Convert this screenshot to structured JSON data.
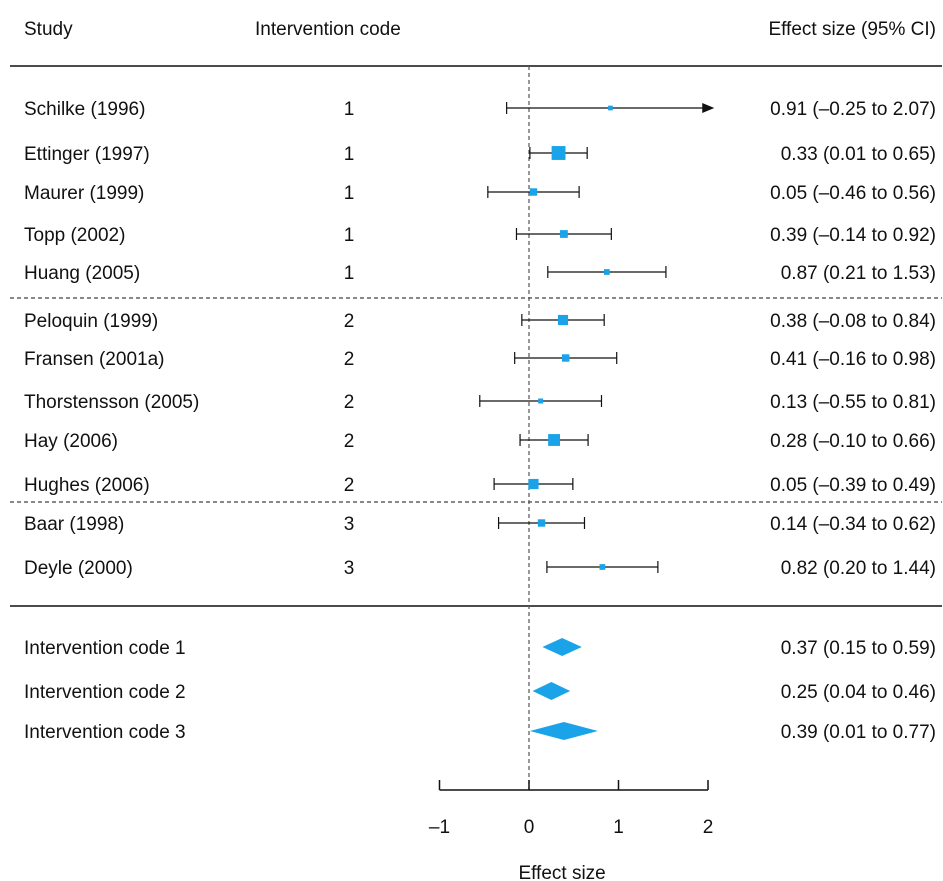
{
  "chart_data": {
    "type": "forest",
    "headers": {
      "study": "Study",
      "code": "Intervention code",
      "effect": "Effect size (95% CI)"
    },
    "xlabel": "Effect size",
    "x_ticks": [
      "–1",
      "0",
      "1",
      "2"
    ],
    "x_tick_values": [
      -1,
      0,
      1,
      2
    ],
    "xlim": [
      -1,
      2
    ],
    "reference_line": 0,
    "marker_color": "#1aa3e8",
    "studies": [
      {
        "name": "Schilke (1996)",
        "code": "1",
        "est": 0.91,
        "lo": -0.25,
        "hi": 2.07,
        "label": "0.91 (–0.25 to 2.07)",
        "weight": 0.5,
        "arrow": "right"
      },
      {
        "name": "Ettinger (1997)",
        "code": "1",
        "est": 0.33,
        "lo": 0.01,
        "hi": 0.65,
        "label": "0.33 (0.01 to 0.65)",
        "weight": 3.2
      },
      {
        "name": "Maurer (1999)",
        "code": "1",
        "est": 0.05,
        "lo": -0.46,
        "hi": 0.56,
        "label": "0.05 (–0.46 to 0.56)",
        "weight": 1.3
      },
      {
        "name": "Topp (2002)",
        "code": "1",
        "est": 0.39,
        "lo": -0.14,
        "hi": 0.92,
        "label": "0.39 (–0.14 to 0.92)",
        "weight": 1.4
      },
      {
        "name": "Huang (2005)",
        "code": "1",
        "est": 0.87,
        "lo": 0.21,
        "hi": 1.53,
        "label": "0.87 (0.21 to 1.53)",
        "weight": 0.8
      },
      {
        "name": "Peloquin (1999)",
        "code": "2",
        "est": 0.38,
        "lo": -0.08,
        "hi": 0.84,
        "label": "0.38 (–0.08 to 0.84)",
        "weight": 2.1
      },
      {
        "name": "Fransen (2001a)",
        "code": "2",
        "est": 0.41,
        "lo": -0.16,
        "hi": 0.98,
        "label": "0.41 (–0.16 to 0.98)",
        "weight": 1.3
      },
      {
        "name": "Thorstensson (2005)",
        "code": "2",
        "est": 0.13,
        "lo": -0.55,
        "hi": 0.81,
        "label": "0.13 (–0.55 to 0.81)",
        "weight": 0.6
      },
      {
        "name": "Hay (2006)",
        "code": "2",
        "est": 0.28,
        "lo": -0.1,
        "hi": 0.66,
        "label": "0.28 (–0.10 to 0.66)",
        "weight": 2.6
      },
      {
        "name": "Hughes (2006)",
        "code": "2",
        "est": 0.05,
        "lo": -0.39,
        "hi": 0.49,
        "label": "0.05 (–0.39 to 0.49)",
        "weight": 2.1
      },
      {
        "name": "Baar (1998)",
        "code": "3",
        "est": 0.14,
        "lo": -0.34,
        "hi": 0.62,
        "label": "0.14 (–0.34 to 0.62)",
        "weight": 1.3
      },
      {
        "name": "Deyle (2000)",
        "code": "3",
        "est": 0.82,
        "lo": 0.2,
        "hi": 1.44,
        "label": "0.82 (0.20 to 1.44)",
        "weight": 0.8
      }
    ],
    "pooled": [
      {
        "name": "Intervention code 1",
        "est": 0.37,
        "lo": 0.15,
        "hi": 0.59,
        "label": "0.37 (0.15 to 0.59)"
      },
      {
        "name": "Intervention code 2",
        "est": 0.25,
        "lo": 0.04,
        "hi": 0.46,
        "label": "0.25 (0.04 to 0.46)"
      },
      {
        "name": "Intervention code 3",
        "est": 0.39,
        "lo": 0.01,
        "hi": 0.77,
        "label": "0.39 (0.01 to 0.77)"
      }
    ]
  }
}
